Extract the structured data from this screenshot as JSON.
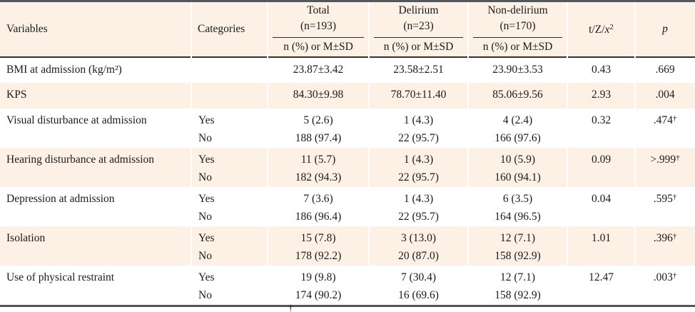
{
  "colors": {
    "row_shade": "#fdf0e5",
    "rule_dark": "#55565a",
    "header_separator": "#333333",
    "text": "#1b1b1b",
    "background": "#ffffff"
  },
  "table": {
    "header": {
      "variables": "Variables",
      "categories": "Categories",
      "groups": [
        {
          "label": "Total",
          "n": "(n=193)",
          "sub": "n (%) or M±SD"
        },
        {
          "label": "Delirium",
          "n": "(n=23)",
          "sub": "n (%) or M±SD"
        },
        {
          "label": "Non-delirium",
          "n": "(n=170)",
          "sub": "n (%) or M±SD"
        }
      ],
      "stat": {
        "prefix": "t/Z/",
        "symbol": "x",
        "superscript": "2"
      },
      "p": "p"
    },
    "rows": [
      {
        "variable": "BMI at admission (kg/m²)",
        "categories": [],
        "total": [
          "23.87±3.42"
        ],
        "delirium": [
          "23.58±2.51"
        ],
        "non_delirium": [
          "23.90±3.53"
        ],
        "stat": "0.43",
        "p": ".669",
        "p_dagger": false,
        "shaded": false
      },
      {
        "variable": "KPS",
        "categories": [],
        "total": [
          "84.30±9.98"
        ],
        "delirium": [
          "78.70±11.40"
        ],
        "non_delirium": [
          "85.06±9.56"
        ],
        "stat": "2.93",
        "p": ".004",
        "p_dagger": false,
        "shaded": true
      },
      {
        "variable": "Visual disturbance at admission",
        "categories": [
          "Yes",
          "No"
        ],
        "total": [
          "5 (2.6)",
          "188 (97.4)"
        ],
        "delirium": [
          "1 (4.3)",
          "22 (95.7)"
        ],
        "non_delirium": [
          "4 (2.4)",
          "166 (97.6)"
        ],
        "stat": "0.32",
        "p": ".474",
        "p_dagger": true,
        "shaded": false
      },
      {
        "variable": "Hearing disturbance at admission",
        "categories": [
          "Yes",
          "No"
        ],
        "total": [
          "11 (5.7)",
          "182 (94.3)"
        ],
        "delirium": [
          "1 (4.3)",
          "22 (95.7)"
        ],
        "non_delirium": [
          "10 (5.9)",
          "160 (94.1)"
        ],
        "stat": "0.09",
        "p": ">.999",
        "p_dagger": true,
        "shaded": true
      },
      {
        "variable": "Depression at admission",
        "categories": [
          "Yes",
          "No"
        ],
        "total": [
          "7 (3.6)",
          "186 (96.4)"
        ],
        "delirium": [
          "1 (4.3)",
          "22 (95.7)"
        ],
        "non_delirium": [
          "6 (3.5)",
          "164 (96.5)"
        ],
        "stat": "0.04",
        "p": ".595",
        "p_dagger": true,
        "shaded": false
      },
      {
        "variable": "Isolation",
        "categories": [
          "Yes",
          "No"
        ],
        "total": [
          "15 (7.8)",
          "178 (92.2)"
        ],
        "delirium": [
          "3 (13.0)",
          "20 (87.0)"
        ],
        "non_delirium": [
          "12 (7.1)",
          "158 (92.9)"
        ],
        "stat": "1.01",
        "p": ".396",
        "p_dagger": true,
        "shaded": true
      },
      {
        "variable": "Use of physical restraint",
        "categories": [
          "Yes",
          "No"
        ],
        "total": [
          "19 (9.8)",
          "174 (90.2)"
        ],
        "delirium": [
          "7 (30.4)",
          "16 (69.6)"
        ],
        "non_delirium": [
          "12 (7.1)",
          "158 (92.9)"
        ],
        "stat": "12.47",
        "p": ".003",
        "p_dagger": true,
        "shaded": false
      }
    ],
    "footnote_marker": "†"
  }
}
